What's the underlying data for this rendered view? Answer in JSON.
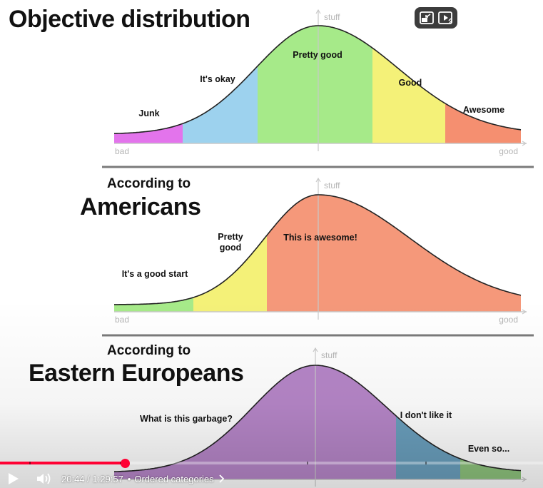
{
  "panels": [
    {
      "title_lines": [
        "Objective distribution"
      ],
      "y_axis_label": "stuff",
      "x_left_label": "bad",
      "x_right_label": "good",
      "regions": [
        {
          "label": "Junk",
          "color": "#e374ec"
        },
        {
          "label": "It's okay",
          "color": "#9dd2ee"
        },
        {
          "label": "Pretty good",
          "color": "#a6ea89"
        },
        {
          "label": "Good",
          "color": "#f4f178"
        },
        {
          "label": "Awesome",
          "color": "#f58f70"
        }
      ]
    },
    {
      "title_lines": [
        "According to",
        "Americans"
      ],
      "y_axis_label": "stuff",
      "x_left_label": "bad",
      "x_right_label": "good",
      "regions": [
        {
          "label": "It's a good start",
          "color": "#a6ea89"
        },
        {
          "label": "Pretty good",
          "color": "#f4f178"
        },
        {
          "label": "This is awesome!",
          "color": "#f5987a"
        }
      ]
    },
    {
      "title_lines": [
        "According to",
        "Eastern Europeans"
      ],
      "y_axis_label": "stuff",
      "x_left_label": "",
      "x_right_label": "",
      "regions": [
        {
          "label": "What is this garbage?",
          "color": "#b686c8"
        },
        {
          "label": "I don't like it",
          "color": "#6a9fbd"
        },
        {
          "label": "Even so...",
          "color": "#8dc27c"
        }
      ]
    }
  ],
  "player": {
    "current_time": "20:44",
    "duration": "1:29:57",
    "separator": "/",
    "chapter": "Ordered categories",
    "progress_fraction": 0.2305,
    "accent_color": "#ff0033",
    "corner_buttons": [
      "miniplayer-icon",
      "autoplay-icon"
    ]
  }
}
